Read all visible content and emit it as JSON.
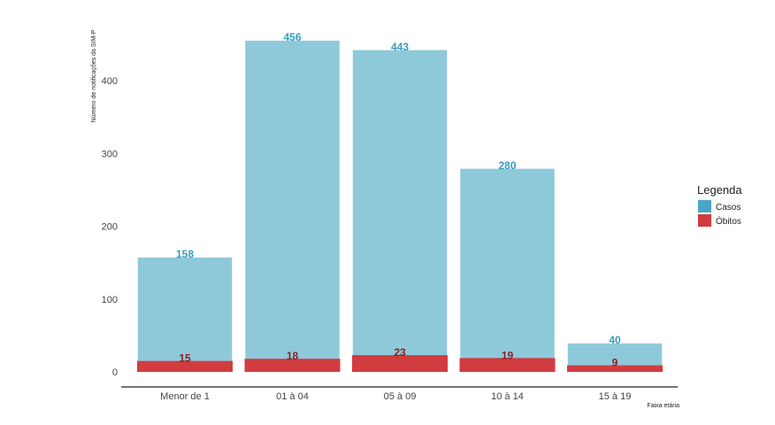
{
  "chart_data": {
    "type": "bar",
    "categories": [
      "Menor de 1",
      "01 à 04",
      "05 à 09",
      "10 à 14",
      "15 à 19"
    ],
    "series": [
      {
        "name": "Casos",
        "values": [
          158,
          456,
          443,
          280,
          40
        ],
        "color": "#8ec9da",
        "label_color": "#3a9bbd"
      },
      {
        "name": "Óbitos",
        "values": [
          15,
          18,
          23,
          19,
          9
        ],
        "color": "#d13c3f",
        "label_color": "#8b1d1f"
      }
    ],
    "xlabel": "Faixa etária",
    "ylabel": "Número de notificações da SIM-P",
    "ylim": [
      0,
      460
    ],
    "yticks": [
      0,
      100,
      200,
      300,
      400
    ],
    "grid": false,
    "legend": {
      "title": "Legenda",
      "position": "right",
      "items": [
        {
          "label": "Casos",
          "color": "#4aa6c6"
        },
        {
          "label": "Óbitos",
          "color": "#d13c3f"
        }
      ]
    }
  }
}
